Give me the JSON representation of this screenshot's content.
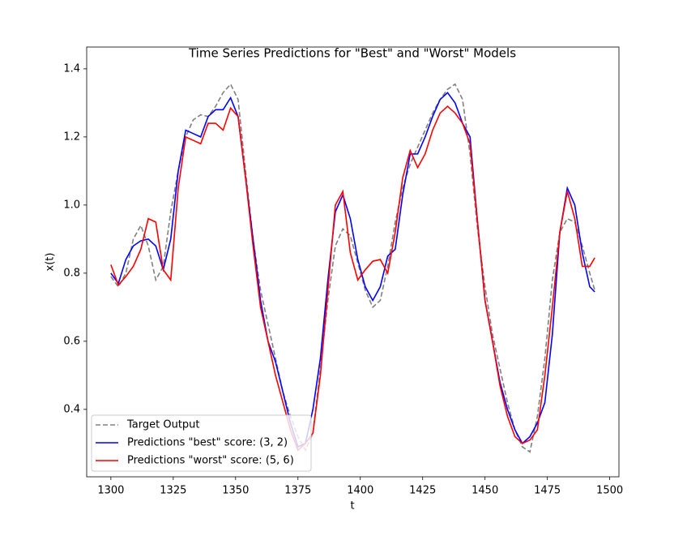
{
  "chart_data": {
    "type": "line",
    "title": "Time Series Predictions for \"Best\" and \"Worst\" Models",
    "xlabel": "t",
    "ylabel": "x(t)",
    "x": [
      1300,
      1303,
      1306,
      1309,
      1312,
      1315,
      1318,
      1321,
      1324,
      1327,
      1330,
      1333,
      1336,
      1339,
      1342,
      1345,
      1348,
      1351,
      1354,
      1357,
      1360,
      1363,
      1366,
      1369,
      1372,
      1375,
      1378,
      1381,
      1384,
      1387,
      1390,
      1393,
      1396,
      1399,
      1402,
      1405,
      1408,
      1411,
      1414,
      1417,
      1420,
      1423,
      1426,
      1429,
      1432,
      1435,
      1438,
      1441,
      1444,
      1447,
      1450,
      1453,
      1456,
      1459,
      1462,
      1465,
      1468,
      1471,
      1474,
      1477,
      1480,
      1483,
      1486,
      1489,
      1492,
      1494
    ],
    "series": [
      {
        "name": "Target Output",
        "color": "#808080",
        "dashed": true,
        "values": [
          0.79,
          0.76,
          0.8,
          0.9,
          0.94,
          0.88,
          0.78,
          0.82,
          0.98,
          1.1,
          1.2,
          1.25,
          1.265,
          1.26,
          1.29,
          1.33,
          1.355,
          1.31,
          1.1,
          0.9,
          0.75,
          0.65,
          0.55,
          0.45,
          0.38,
          0.32,
          0.28,
          0.33,
          0.52,
          0.72,
          0.88,
          0.93,
          0.91,
          0.83,
          0.75,
          0.7,
          0.72,
          0.82,
          0.95,
          1.05,
          1.12,
          1.17,
          1.22,
          1.27,
          1.31,
          1.34,
          1.355,
          1.31,
          1.15,
          0.93,
          0.76,
          0.62,
          0.52,
          0.42,
          0.34,
          0.29,
          0.275,
          0.38,
          0.55,
          0.78,
          0.92,
          0.96,
          0.95,
          0.88,
          0.8,
          0.75
        ]
      },
      {
        "name": "Predictions \"best\" score: (3, 2)",
        "color": "#0000ff",
        "dashed": false,
        "values": [
          0.8,
          0.77,
          0.84,
          0.88,
          0.895,
          0.9,
          0.88,
          0.81,
          0.9,
          1.1,
          1.22,
          1.21,
          1.2,
          1.26,
          1.28,
          1.28,
          1.315,
          1.26,
          1.08,
          0.9,
          0.72,
          0.6,
          0.54,
          0.45,
          0.36,
          0.29,
          0.3,
          0.4,
          0.55,
          0.78,
          0.98,
          1.03,
          0.96,
          0.84,
          0.76,
          0.72,
          0.76,
          0.85,
          0.87,
          1.03,
          1.15,
          1.15,
          1.2,
          1.26,
          1.31,
          1.33,
          1.3,
          1.24,
          1.2,
          0.95,
          0.72,
          0.6,
          0.48,
          0.4,
          0.34,
          0.3,
          0.32,
          0.36,
          0.42,
          0.62,
          0.92,
          1.05,
          1.0,
          0.86,
          0.76,
          0.745
        ]
      },
      {
        "name": "Predictions \"worst\" score: (5, 6)",
        "color": "#ff0000",
        "dashed": false,
        "values": [
          0.825,
          0.765,
          0.79,
          0.82,
          0.87,
          0.96,
          0.95,
          0.81,
          0.78,
          1.05,
          1.2,
          1.19,
          1.18,
          1.24,
          1.24,
          1.22,
          1.285,
          1.26,
          1.08,
          0.88,
          0.7,
          0.6,
          0.5,
          0.42,
          0.34,
          0.28,
          0.3,
          0.33,
          0.5,
          0.75,
          1.0,
          1.04,
          0.86,
          0.78,
          0.81,
          0.835,
          0.84,
          0.8,
          0.92,
          1.08,
          1.16,
          1.11,
          1.15,
          1.22,
          1.27,
          1.29,
          1.27,
          1.24,
          1.18,
          0.95,
          0.72,
          0.6,
          0.47,
          0.38,
          0.32,
          0.3,
          0.31,
          0.34,
          0.5,
          0.7,
          0.92,
          1.04,
          0.96,
          0.82,
          0.82,
          0.845
        ]
      }
    ],
    "xlim": [
      1290.3,
      1503.7
    ],
    "ylim": [
      0.202,
      1.464
    ],
    "xticks": [
      1300,
      1325,
      1350,
      1375,
      1400,
      1425,
      1450,
      1475,
      1500
    ],
    "yticks": [
      0.4,
      0.6,
      0.8,
      {
        "value": 1,
        "label": "1.0"
      },
      1.2,
      1.4
    ],
    "grid": false,
    "legend": "lower left"
  }
}
